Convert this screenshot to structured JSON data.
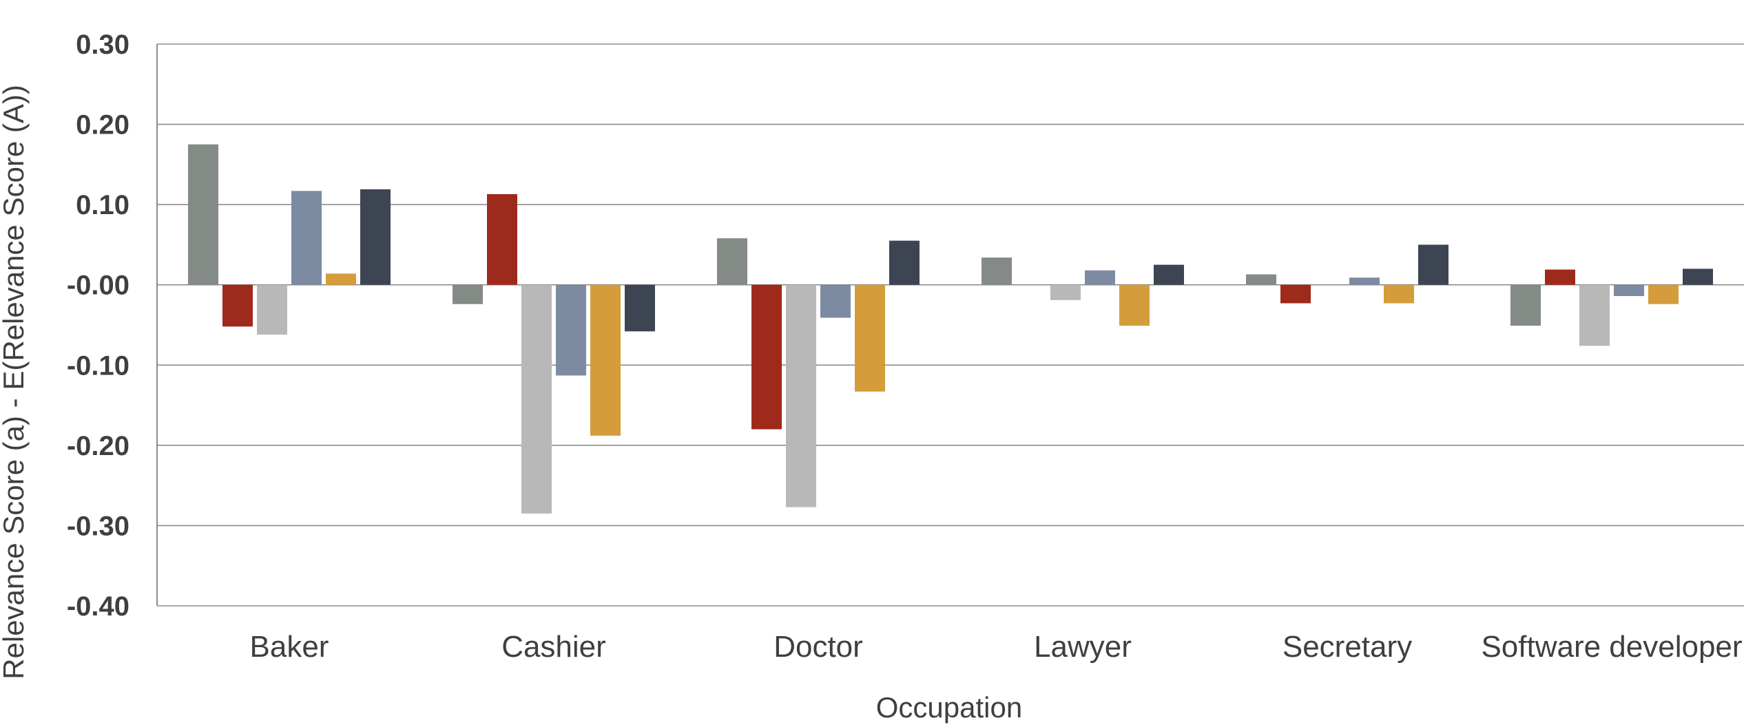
{
  "chart_data": {
    "type": "bar",
    "title": "",
    "xlabel": "Occupation",
    "ylabel": "Relevance Score (a) - E(Relevance Score (A))",
    "ylim": [
      -0.4,
      0.3
    ],
    "yticks": [
      0.3,
      0.2,
      0.1,
      0.0,
      -0.1,
      -0.2,
      -0.3,
      -0.4
    ],
    "ytick_labels": [
      "0.30",
      "0.20",
      "0.10",
      "-0.00",
      "-0.10",
      "-0.20",
      "-0.30",
      "-0.40"
    ],
    "grid": true,
    "legend": "none",
    "categories": [
      "Baker",
      "Cashier",
      "Doctor",
      "Lawyer",
      "Secretary",
      "Software developer"
    ],
    "series": [
      {
        "color": "#848a86",
        "values": [
          0.175,
          -0.024,
          0.058,
          0.034,
          0.013,
          -0.051
        ]
      },
      {
        "color": "#9e2a1b",
        "values": [
          -0.052,
          0.113,
          -0.18,
          0.0,
          -0.023,
          0.019
        ]
      },
      {
        "color": "#b8b8b8",
        "values": [
          -0.062,
          -0.285,
          -0.277,
          -0.019,
          0.0,
          -0.076
        ]
      },
      {
        "color": "#7d8ba2",
        "values": [
          0.117,
          -0.113,
          -0.041,
          0.018,
          0.009,
          -0.014
        ]
      },
      {
        "color": "#d49c3a",
        "values": [
          0.014,
          -0.188,
          -0.133,
          -0.051,
          -0.023,
          -0.024
        ]
      },
      {
        "color": "#3d4452",
        "values": [
          0.119,
          -0.058,
          0.055,
          0.025,
          0.05,
          0.02
        ]
      }
    ]
  }
}
